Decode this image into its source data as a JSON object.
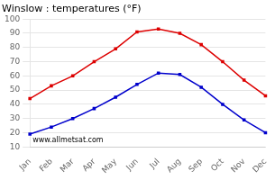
{
  "chart_data": {
    "type": "line",
    "title": "Winslow : temperatures (°F)",
    "categories": [
      "Jan",
      "Feb",
      "Mar",
      "Apr",
      "May",
      "Jun",
      "Jul",
      "Aug",
      "Sep",
      "Oct",
      "Nov",
      "Dec"
    ],
    "series": [
      {
        "color": "#dd0000",
        "marker": "square",
        "line_style": "solid",
        "values": [
          44,
          53,
          60,
          70,
          79,
          91,
          93,
          90,
          82,
          70,
          57,
          46
        ]
      },
      {
        "color": "#0000cc",
        "marker": "square",
        "line_style": "solid",
        "values": [
          19,
          24,
          30,
          37,
          45,
          54,
          62,
          61,
          52,
          40,
          29,
          20
        ]
      }
    ],
    "ylim": [
      10,
      100
    ],
    "yticks": [
      10,
      20,
      30,
      40,
      50,
      60,
      70,
      80,
      90,
      100
    ],
    "grid": "y",
    "annotations": [
      "www.allmetsat.com"
    ]
  }
}
